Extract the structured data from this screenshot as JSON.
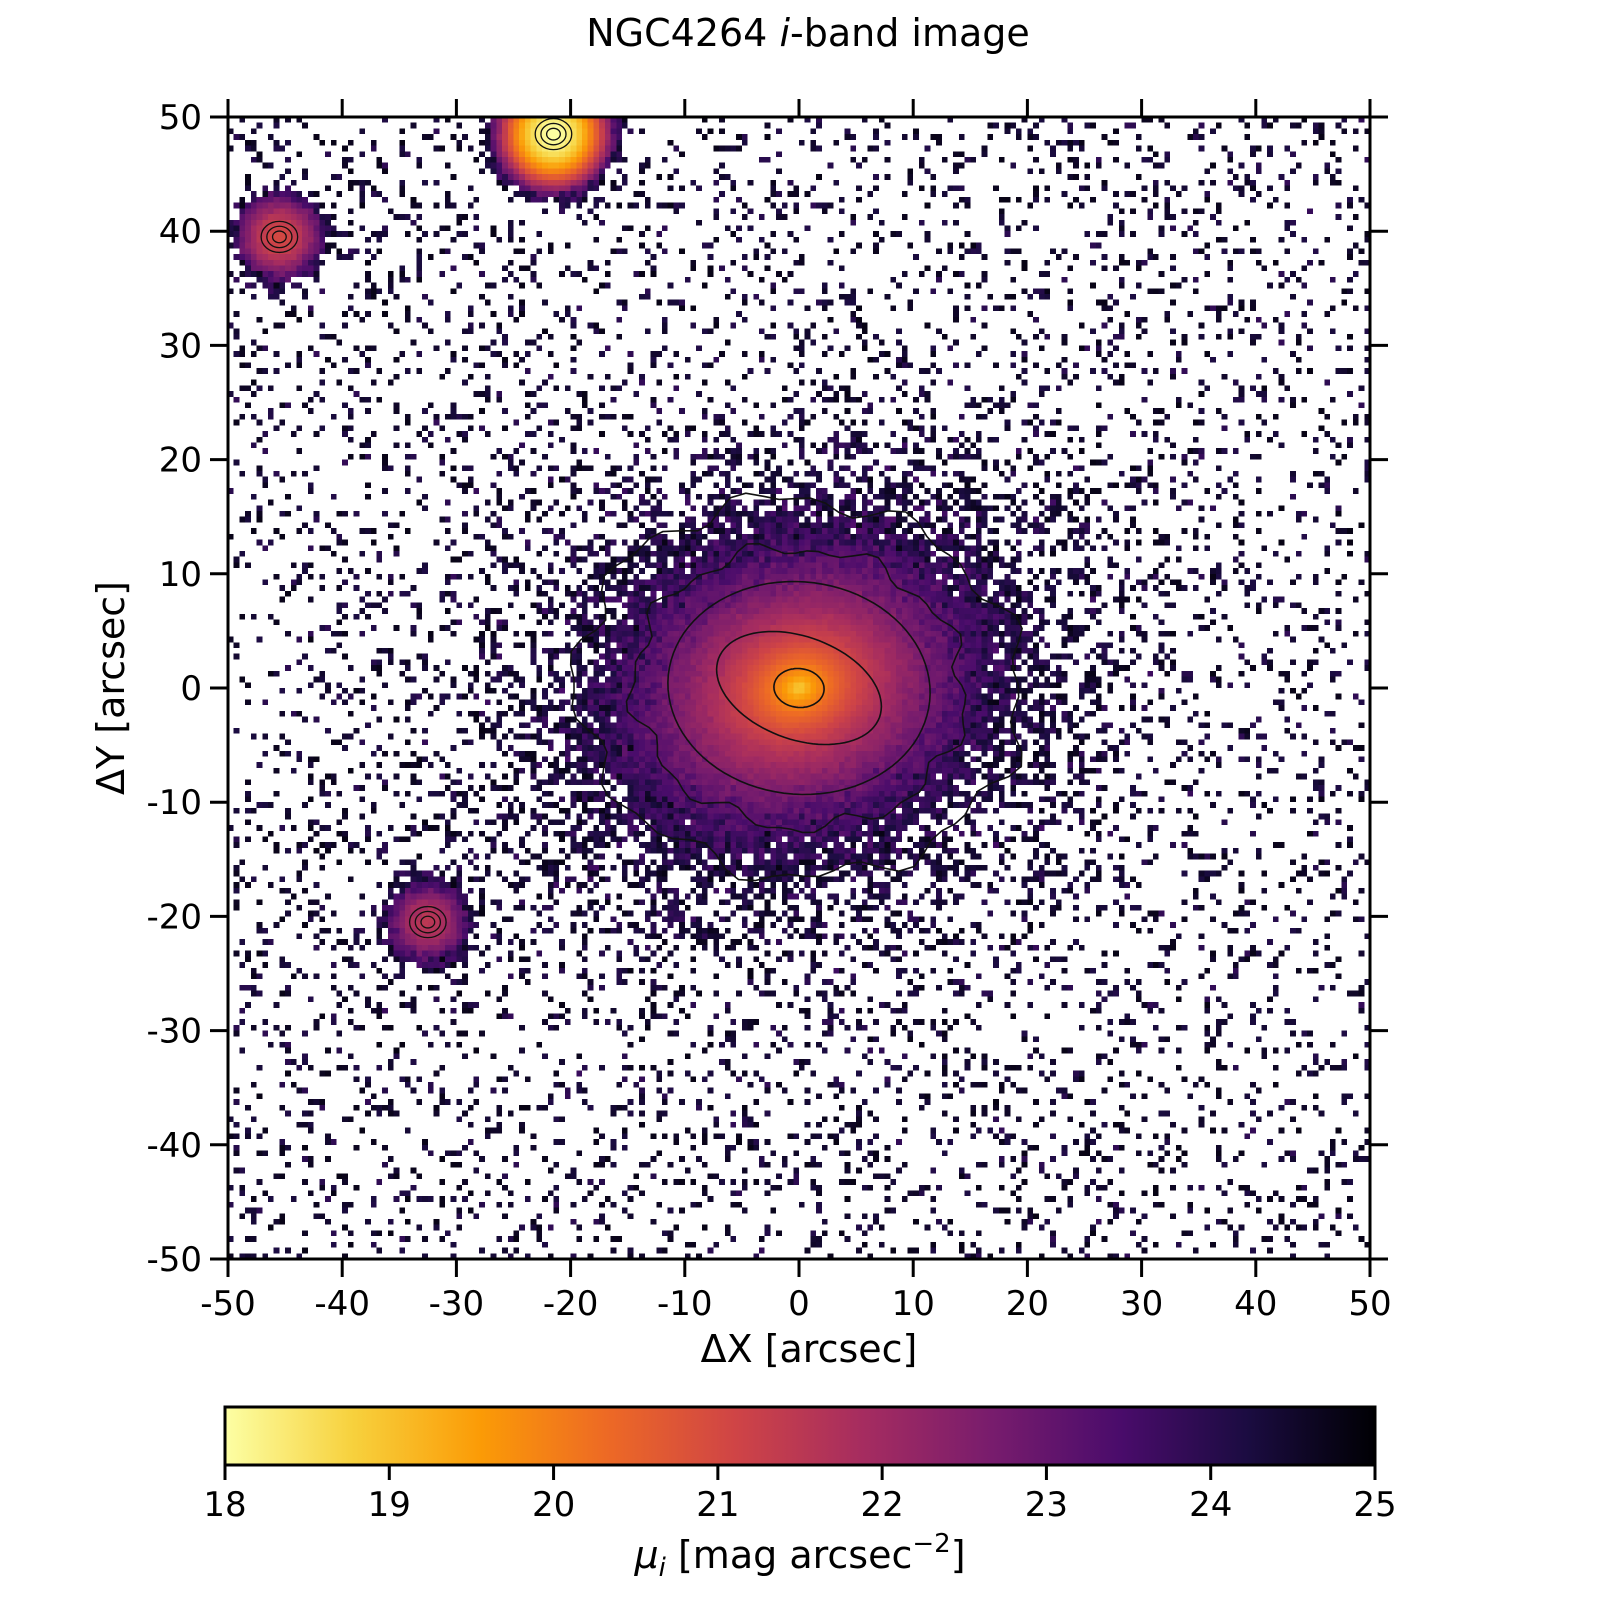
{
  "chart_data": {
    "type": "heatmap",
    "title_main": "NGC4264 ",
    "title_italic": "i",
    "title_rest": "-band image",
    "xlabel": "ΔX [arcsec]",
    "ylabel": "ΔY [arcsec]",
    "xlim": [
      -50,
      50
    ],
    "ylim": [
      -50,
      50
    ],
    "xticks": [
      -50,
      -40,
      -30,
      -20,
      -10,
      0,
      10,
      20,
      30,
      40,
      50
    ],
    "yticks": [
      -50,
      -40,
      -30,
      -20,
      -10,
      0,
      10,
      20,
      30,
      40,
      50
    ],
    "colormap": "inferno_r",
    "colorbar": {
      "label_symbol": "μ",
      "label_sub": "i",
      "label_text": " [mag arcsec",
      "label_sup": "−2",
      "label_end": "]",
      "range": [
        18,
        25
      ],
      "ticks": [
        18,
        19,
        20,
        21,
        22,
        23,
        24,
        25
      ],
      "stops": [
        "#fcffa4",
        "#f7d13d",
        "#fb9b06",
        "#ed6925",
        "#cf4446",
        "#a52c60",
        "#781c6d",
        "#4a0c6b",
        "#1b0c41",
        "#000004"
      ]
    },
    "galaxy": {
      "center": [
        0,
        0
      ],
      "peak_mag": 18.0,
      "contours": [
        {
          "level": 18.5,
          "rx": 2.2,
          "ry": 1.7
        },
        {
          "level": 19.5,
          "rx": 7.5,
          "ry": 4.5
        },
        {
          "level": 20.5,
          "rx": 11.5,
          "ry": 9.3
        },
        {
          "level": 21.5,
          "rx": 14.5,
          "ry": 12.2
        },
        {
          "level": 22.5,
          "rx": 19.5,
          "ry": 16.5
        }
      ]
    },
    "point_sources": [
      {
        "x": -21.5,
        "y": 48.5,
        "peak_mag": 18.0
      },
      {
        "x": -45.5,
        "y": 39.5,
        "peak_mag": 21.0
      },
      {
        "x": -32.5,
        "y": -20.5,
        "peak_mag": 21.5
      }
    ]
  }
}
